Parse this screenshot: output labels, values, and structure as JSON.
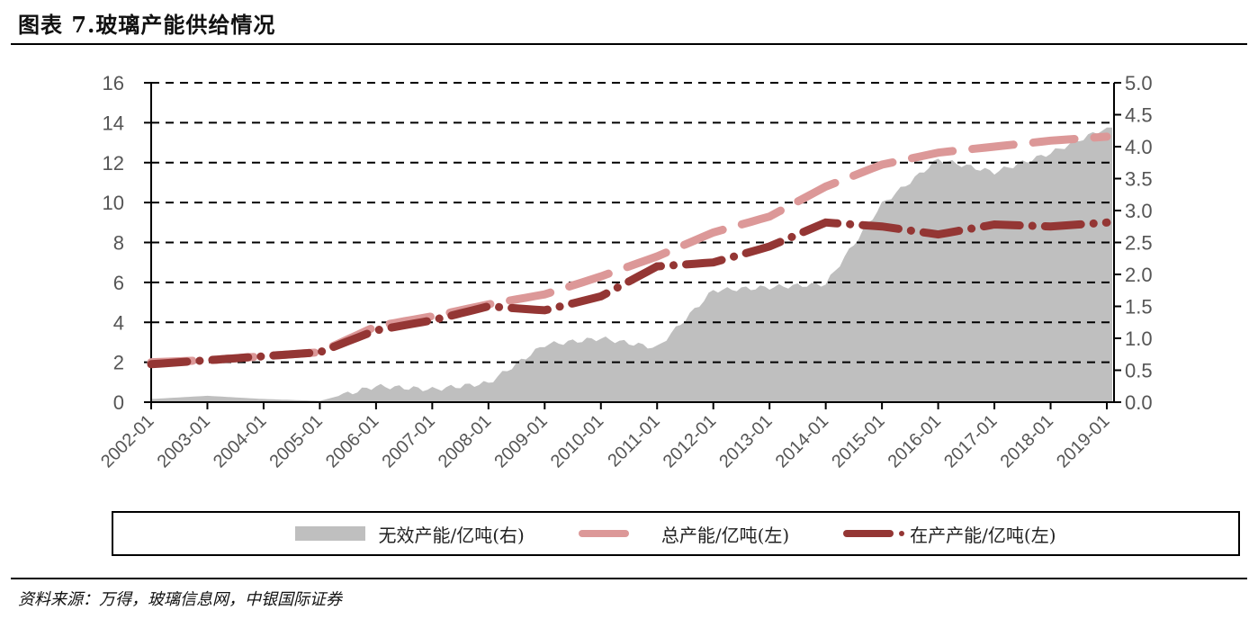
{
  "header": {
    "title": "图表 7.玻璃产能供给情况"
  },
  "footer": {
    "source": "资料来源：万得，玻璃信息网，中银国际证券"
  },
  "legend": {
    "items": [
      {
        "label": "无效产能/亿吨(右)",
        "color": "#bfbfbf",
        "kind": "area"
      },
      {
        "label": "总产能/亿吨(左)",
        "color": "#dc9898",
        "kind": "dash"
      },
      {
        "label": "在产产能/亿吨(左)",
        "color": "#943634",
        "kind": "dash-dot"
      }
    ]
  },
  "chart_data": {
    "type": "line",
    "title": "玻璃产能供给情况",
    "xlabel": "",
    "ylabel": "亿吨",
    "categories": [
      "2002-01",
      "2003-01",
      "2004-01",
      "2005-01",
      "2006-01",
      "2007-01",
      "2008-01",
      "2009-01",
      "2010-01",
      "2011-01",
      "2012-01",
      "2013-01",
      "2014-01",
      "2015-01",
      "2016-01",
      "2017-01",
      "2018-01",
      "2019-01"
    ],
    "left_axis": {
      "ylim": [
        0,
        16
      ],
      "ticks": [
        "0",
        "2",
        "4",
        "6",
        "8",
        "10",
        "12",
        "14",
        "16"
      ]
    },
    "right_axis": {
      "ylim": [
        0,
        5
      ],
      "ticks": [
        "0.0",
        "0.5",
        "1.0",
        "1.5",
        "2.0",
        "2.5",
        "3.0",
        "3.5",
        "4.0",
        "4.5",
        "5.0"
      ]
    },
    "grid": "dashed horizontal",
    "legend_position": "bottom",
    "series": [
      {
        "name": "无效产能/亿吨(右)",
        "type": "area",
        "axis": "right",
        "color": "#bfbfbf",
        "values": [
          0.05,
          0.1,
          0.05,
          0.02,
          0.25,
          0.2,
          0.3,
          0.9,
          1.0,
          0.85,
          1.75,
          1.8,
          1.85,
          3.1,
          3.8,
          3.6,
          3.9,
          4.3
        ]
      },
      {
        "name": "总产能/亿吨(左)",
        "type": "line",
        "axis": "left",
        "color": "#dc9898",
        "values": [
          2.0,
          2.1,
          2.3,
          2.5,
          3.8,
          4.3,
          4.9,
          5.4,
          6.3,
          7.3,
          8.5,
          9.3,
          10.8,
          11.9,
          12.5,
          12.8,
          13.1,
          13.3
        ]
      },
      {
        "name": "在产产能/亿吨(左)",
        "type": "line",
        "axis": "left",
        "color": "#943634",
        "values": [
          1.9,
          2.1,
          2.3,
          2.5,
          3.6,
          4.1,
          4.8,
          4.6,
          5.3,
          6.8,
          7.0,
          7.8,
          9.0,
          8.8,
          8.4,
          8.9,
          8.8,
          9.0
        ]
      }
    ]
  }
}
